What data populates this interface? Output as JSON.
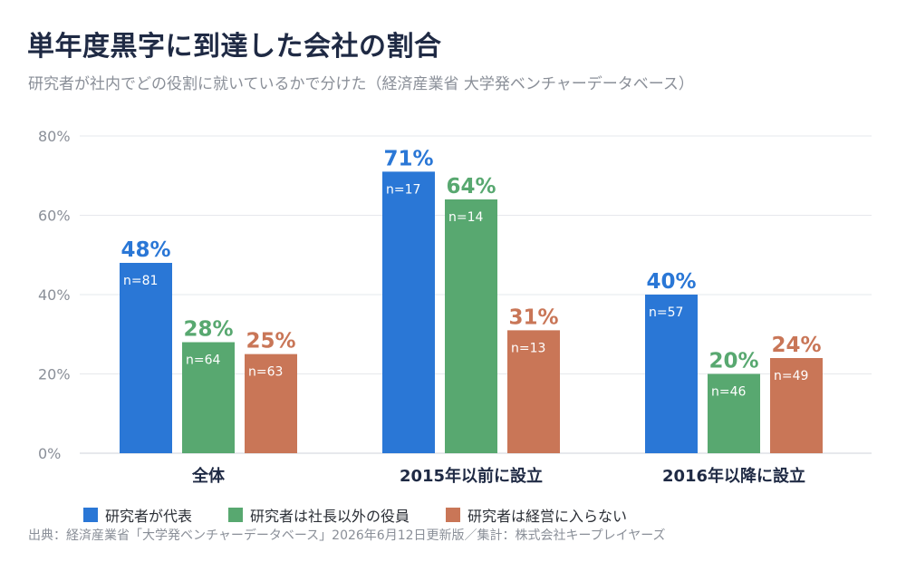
{
  "title": "単年度黒字に到達した会社の割合",
  "subtitle": "研究者が社内でどの役割に就いているかで分けた（経済産業省 大学発ベンチャーデータベース）",
  "source": "出典：経済産業省「大学発ベンチャーデータベース」2026年6月12日更新版／集計：株式会社キープレイヤーズ",
  "chart_data": {
    "type": "bar",
    "categories": [
      "全体",
      "2015年以前に設立",
      "2016年以降に設立"
    ],
    "series": [
      {
        "name": "研究者が代表",
        "color": "#2a77d6",
        "values": [
          48,
          71,
          40
        ],
        "value_labels": [
          "48%",
          "71%",
          "40%"
        ],
        "n_labels": [
          "n=81",
          "n=17",
          "n=57"
        ]
      },
      {
        "name": "研究者は社長以外の役員",
        "color": "#58a870",
        "values": [
          28,
          64,
          20
        ],
        "value_labels": [
          "28%",
          "64%",
          "20%"
        ],
        "n_labels": [
          "n=64",
          "n=14",
          "n=46"
        ]
      },
      {
        "name": "研究者は経営に入らない",
        "color": "#c97657",
        "values": [
          25,
          31,
          24
        ],
        "value_labels": [
          "25%",
          "31%",
          "24%"
        ],
        "n_labels": [
          "n=63",
          "n=13",
          "n=49"
        ]
      }
    ],
    "y_ticks": [
      "0%",
      "20%",
      "40%",
      "60%",
      "80%"
    ],
    "ylim": [
      0,
      80
    ],
    "grid": true,
    "legend_position": "bottom"
  }
}
